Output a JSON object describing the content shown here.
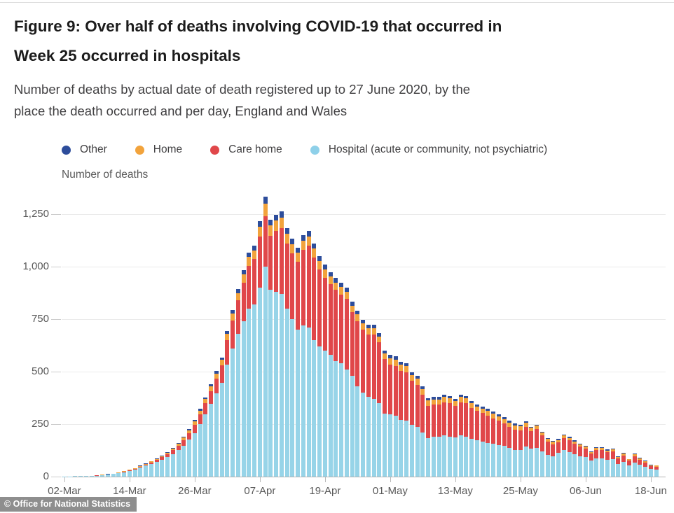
{
  "header": {
    "title_line1": "Figure 9: Over half of deaths involving COVID-19 that occurred in",
    "title_line2": "Week 25 occurred in hospitals",
    "subtitle_line1": "Number of deaths by actual date of death registered up to 27 June 2020, by the",
    "subtitle_line2": "place the death occurred and per day, England and Wales"
  },
  "legend": {
    "items": [
      {
        "label": "Other",
        "color": "#2d4d9b"
      },
      {
        "label": "Home",
        "color": "#f2a33c"
      },
      {
        "label": "Care home",
        "color": "#e0474a"
      },
      {
        "label": "Hospital (acute or community, not psychiatric)",
        "color": "#8ed0e9"
      }
    ]
  },
  "axis_title": "Number of deaths",
  "footer": {
    "copyright": "© Office for National Statistics"
  },
  "chart_data": {
    "type": "bar",
    "stacked": true,
    "title": "Figure 9: Over half of deaths involving COVID-19 that occurred in Week 25 occurred in hospitals",
    "subtitle": "Number of deaths by actual date of death registered up to 27 June 2020, by the place the death occurred and per day, England and Wales",
    "ylabel": "Number of deaths",
    "ylim": [
      0,
      1250
    ],
    "grid": true,
    "legend_position": "top",
    "yticks": [
      {
        "value": 0,
        "label": "0"
      },
      {
        "value": 250,
        "label": "250"
      },
      {
        "value": 500,
        "label": "500"
      },
      {
        "value": 750,
        "label": "750"
      },
      {
        "value": 1000,
        "label": "1,000"
      },
      {
        "value": 1250,
        "label": "1,250"
      }
    ],
    "xticks": [
      {
        "index": 0,
        "label": "02-Mar"
      },
      {
        "index": 12,
        "label": "14-Mar"
      },
      {
        "index": 24,
        "label": "26-Mar"
      },
      {
        "index": 36,
        "label": "07-Apr"
      },
      {
        "index": 48,
        "label": "19-Apr"
      },
      {
        "index": 60,
        "label": "01-May"
      },
      {
        "index": 72,
        "label": "13-May"
      },
      {
        "index": 84,
        "label": "25-May"
      },
      {
        "index": 96,
        "label": "06-Jun"
      },
      {
        "index": 108,
        "label": "18-Jun"
      }
    ],
    "categories": [
      "02-Mar",
      "03-Mar",
      "04-Mar",
      "05-Mar",
      "06-Mar",
      "07-Mar",
      "08-Mar",
      "09-Mar",
      "10-Mar",
      "11-Mar",
      "12-Mar",
      "13-Mar",
      "14-Mar",
      "15-Mar",
      "16-Mar",
      "17-Mar",
      "18-Mar",
      "19-Mar",
      "20-Mar",
      "21-Mar",
      "22-Mar",
      "23-Mar",
      "24-Mar",
      "25-Mar",
      "26-Mar",
      "27-Mar",
      "28-Mar",
      "29-Mar",
      "30-Mar",
      "31-Mar",
      "01-Apr",
      "02-Apr",
      "03-Apr",
      "04-Apr",
      "05-Apr",
      "06-Apr",
      "07-Apr",
      "08-Apr",
      "09-Apr",
      "10-Apr",
      "11-Apr",
      "12-Apr",
      "13-Apr",
      "14-Apr",
      "15-Apr",
      "16-Apr",
      "17-Apr",
      "18-Apr",
      "19-Apr",
      "20-Apr",
      "21-Apr",
      "22-Apr",
      "23-Apr",
      "24-Apr",
      "25-Apr",
      "26-Apr",
      "27-Apr",
      "28-Apr",
      "29-Apr",
      "30-Apr",
      "01-May",
      "02-May",
      "03-May",
      "04-May",
      "05-May",
      "06-May",
      "07-May",
      "08-May",
      "09-May",
      "10-May",
      "11-May",
      "12-May",
      "13-May",
      "14-May",
      "15-May",
      "16-May",
      "17-May",
      "18-May",
      "19-May",
      "20-May",
      "21-May",
      "22-May",
      "23-May",
      "24-May",
      "25-May",
      "26-May",
      "27-May",
      "28-May",
      "29-May",
      "30-May",
      "31-May",
      "01-Jun",
      "02-Jun",
      "03-Jun",
      "04-Jun",
      "05-Jun",
      "06-Jun",
      "07-Jun",
      "08-Jun",
      "09-Jun",
      "10-Jun",
      "11-Jun",
      "12-Jun",
      "13-Jun",
      "14-Jun",
      "15-Jun",
      "16-Jun",
      "17-Jun",
      "18-Jun",
      "19-Jun"
    ],
    "series": [
      {
        "name": "Hospital (acute or community, not psychiatric)",
        "color": "#97d4e8",
        "values": [
          1,
          1,
          2,
          3,
          3,
          4,
          5,
          7,
          9,
          12,
          16,
          21,
          27,
          34,
          43,
          52,
          61,
          70,
          81,
          94,
          108,
          126,
          148,
          175,
          208,
          250,
          295,
          345,
          395,
          448,
          535,
          610,
          680,
          740,
          800,
          820,
          900,
          1000,
          890,
          880,
          870,
          800,
          750,
          700,
          720,
          710,
          650,
          620,
          600,
          580,
          550,
          540,
          510,
          480,
          430,
          400,
          380,
          370,
          350,
          300,
          296,
          290,
          270,
          268,
          245,
          235,
          210,
          185,
          190,
          190,
          195,
          190,
          185,
          195,
          190,
          180,
          172,
          165,
          160,
          156,
          150,
          145,
          135,
          128,
          126,
          145,
          132,
          138,
          121,
          104,
          96,
          112,
          125,
          118,
          108,
          98,
          92,
          76,
          88,
          88,
          81,
          84,
          60,
          70,
          52,
          68,
          56,
          47,
          35,
          33
        ]
      },
      {
        "name": "Care home",
        "color": "#e0474a",
        "values": [
          0,
          0,
          0,
          0,
          0,
          1,
          1,
          1,
          1,
          2,
          2,
          3,
          3,
          4,
          5,
          6,
          7,
          9,
          11,
          14,
          17,
          21,
          26,
          31,
          38,
          46,
          54,
          63,
          72,
          82,
          115,
          135,
          160,
          185,
          205,
          215,
          245,
          240,
          255,
          289,
          315,
          311,
          314,
          324,
          360,
          390,
          394,
          367,
          347,
          335,
          339,
          326,
          336,
          302,
          310,
          299,
          296,
          306,
          289,
          259,
          238,
          238,
          233,
          229,
          210,
          203,
          180,
          152,
          153,
          153,
          159,
          159,
          150,
          159,
          159,
          146,
          140,
          137,
          129,
          122,
          115,
          108,
          101,
          95,
          93,
          92,
          85,
          89,
          76,
          64,
          59,
          50,
          58,
          55,
          49,
          44,
          40,
          33,
          39,
          39,
          36,
          37,
          27,
          31,
          24,
          30,
          25,
          21,
          16,
          15
        ]
      },
      {
        "name": "Home",
        "color": "#f2a33c",
        "values": [
          0,
          0,
          0,
          0,
          1,
          0,
          0,
          1,
          1,
          1,
          1,
          2,
          2,
          2,
          3,
          3,
          4,
          5,
          6,
          7,
          8,
          10,
          12,
          14,
          16,
          18,
          20,
          22,
          24,
          26,
          30,
          32,
          35,
          38,
          41,
          42,
          46,
          60,
          52,
          50,
          50,
          46,
          44,
          42,
          45,
          45,
          42,
          40,
          40,
          38,
          36,
          36,
          35,
          33,
          32,
          30,
          30,
          30,
          29,
          27,
          30,
          30,
          29,
          29,
          28,
          28,
          27,
          25,
          25,
          25,
          25,
          25,
          24,
          25,
          25,
          24,
          23,
          23,
          23,
          22,
          22,
          21,
          21,
          20,
          20,
          20,
          15,
          15,
          13,
          11,
          11,
          12,
          13,
          12,
          11,
          11,
          10,
          8,
          9,
          9,
          8,
          9,
          7,
          8,
          6,
          8,
          7,
          6,
          4,
          4
        ]
      },
      {
        "name": "Other",
        "color": "#2d4d9b",
        "values": [
          0,
          0,
          0,
          0,
          0,
          0,
          1,
          0,
          1,
          0,
          1,
          1,
          1,
          1,
          2,
          2,
          2,
          2,
          3,
          3,
          4,
          4,
          5,
          6,
          7,
          8,
          9,
          10,
          11,
          12,
          15,
          16,
          18,
          20,
          22,
          23,
          25,
          35,
          28,
          28,
          28,
          26,
          25,
          24,
          25,
          25,
          24,
          23,
          23,
          22,
          21,
          21,
          20,
          19,
          18,
          17,
          17,
          17,
          16,
          15,
          15,
          15,
          14,
          14,
          13,
          13,
          12,
          11,
          11,
          11,
          11,
          11,
          11,
          11,
          11,
          10,
          10,
          10,
          10,
          10,
          9,
          9,
          9,
          9,
          8,
          7,
          6,
          6,
          5,
          5,
          5,
          5,
          5,
          5,
          5,
          4,
          4,
          3,
          4,
          4,
          4,
          4,
          2,
          3,
          2,
          3,
          2,
          2,
          2,
          1
        ]
      }
    ]
  }
}
